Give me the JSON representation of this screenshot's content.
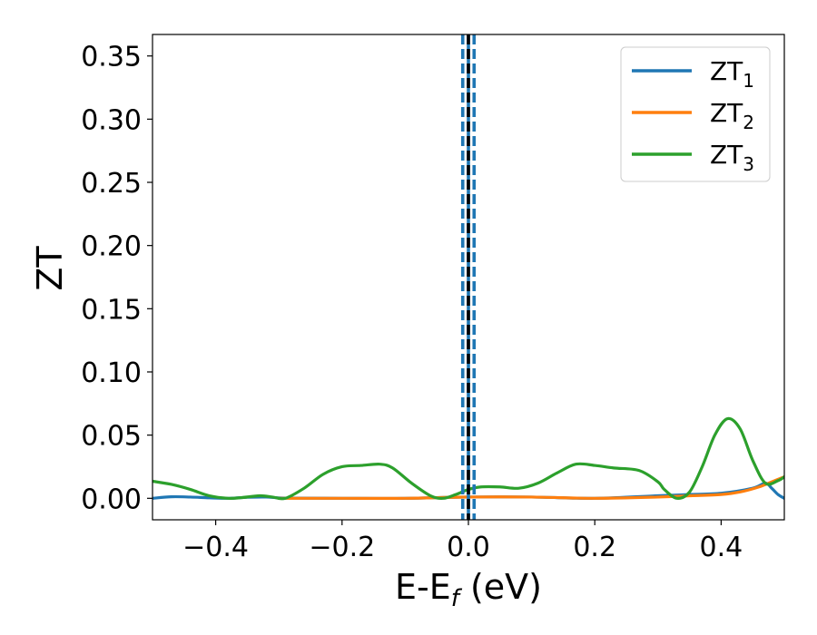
{
  "chart_data": {
    "type": "line",
    "xlabel": "E-E",
    "xlabel_subscript": "f",
    "xlabel_unit": "(eV)",
    "ylabel": "ZT",
    "xlim": [
      -0.5,
      0.5
    ],
    "ylim": [
      -0.017,
      0.367
    ],
    "x_ticks": [
      -0.4,
      -0.2,
      0.0,
      0.2,
      0.4
    ],
    "x_tick_labels": [
      "−0.4",
      "−0.2",
      "0.0",
      "0.2",
      "0.4"
    ],
    "y_ticks": [
      0.0,
      0.05,
      0.1,
      0.15,
      0.2,
      0.25,
      0.3,
      0.35
    ],
    "y_tick_labels": [
      "0.00",
      "0.05",
      "0.10",
      "0.15",
      "0.20",
      "0.25",
      "0.30",
      "0.35"
    ],
    "grid": false,
    "legend_position": "top-right",
    "series": [
      {
        "name": "ZT",
        "name_subscript": "1",
        "color": "#1f77b4",
        "x": [
          -0.5,
          -0.47,
          -0.44,
          -0.41,
          -0.38,
          -0.35,
          -0.32,
          -0.29,
          -0.2,
          -0.1,
          0.0,
          0.1,
          0.2,
          0.3,
          0.35,
          0.4,
          0.45,
          0.47,
          0.48,
          0.49,
          0.5
        ],
        "y": [
          0.0,
          0.0012,
          0.001,
          0.0004,
          0.0,
          0.0008,
          0.001,
          0.0002,
          0.0,
          0.0,
          0.001,
          0.001,
          0.0,
          0.002,
          0.003,
          0.004,
          0.008,
          0.012,
          0.008,
          0.003,
          0.0
        ]
      },
      {
        "name": "ZT",
        "name_subscript": "2",
        "color": "#ff7f0e",
        "x": [
          -0.3,
          -0.2,
          -0.1,
          0.0,
          0.1,
          0.2,
          0.3,
          0.35,
          0.4,
          0.43,
          0.46,
          0.48,
          0.5
        ],
        "y": [
          0.0,
          0.0,
          0.0,
          0.001,
          0.001,
          0.0,
          0.001,
          0.002,
          0.003,
          0.005,
          0.009,
          0.013,
          0.017
        ]
      },
      {
        "name": "ZT",
        "name_subscript": "3",
        "color": "#2ca02c",
        "x": [
          -0.5,
          -0.47,
          -0.44,
          -0.41,
          -0.38,
          -0.36,
          -0.33,
          -0.31,
          -0.29,
          -0.26,
          -0.23,
          -0.2,
          -0.17,
          -0.14,
          -0.12,
          -0.09,
          -0.06,
          -0.04,
          -0.02,
          0.0,
          0.02,
          0.05,
          0.08,
          0.11,
          0.14,
          0.17,
          0.2,
          0.23,
          0.27,
          0.3,
          0.31,
          0.33,
          0.35,
          0.37,
          0.39,
          0.41,
          0.43,
          0.45,
          0.47,
          0.49,
          0.5
        ],
        "y": [
          0.0135,
          0.011,
          0.007,
          0.002,
          0.0,
          0.0005,
          0.002,
          0.001,
          0.0,
          0.008,
          0.019,
          0.025,
          0.026,
          0.027,
          0.024,
          0.012,
          0.002,
          0.0,
          0.003,
          0.007,
          0.009,
          0.009,
          0.008,
          0.012,
          0.02,
          0.027,
          0.026,
          0.024,
          0.022,
          0.013,
          0.007,
          0.0,
          0.005,
          0.025,
          0.05,
          0.063,
          0.055,
          0.03,
          0.012,
          0.014,
          0.017
        ]
      }
    ],
    "vertical_lines": [
      {
        "x": -0.009,
        "color": "#1f77b4",
        "style": "dashed"
      },
      {
        "x": 0.0,
        "color": "#1f77b4",
        "style": "solid"
      },
      {
        "x": 0.009,
        "color": "#1f77b4",
        "style": "dashed"
      },
      {
        "x": 0.0,
        "color": "#000000",
        "style": "dashed"
      }
    ]
  }
}
